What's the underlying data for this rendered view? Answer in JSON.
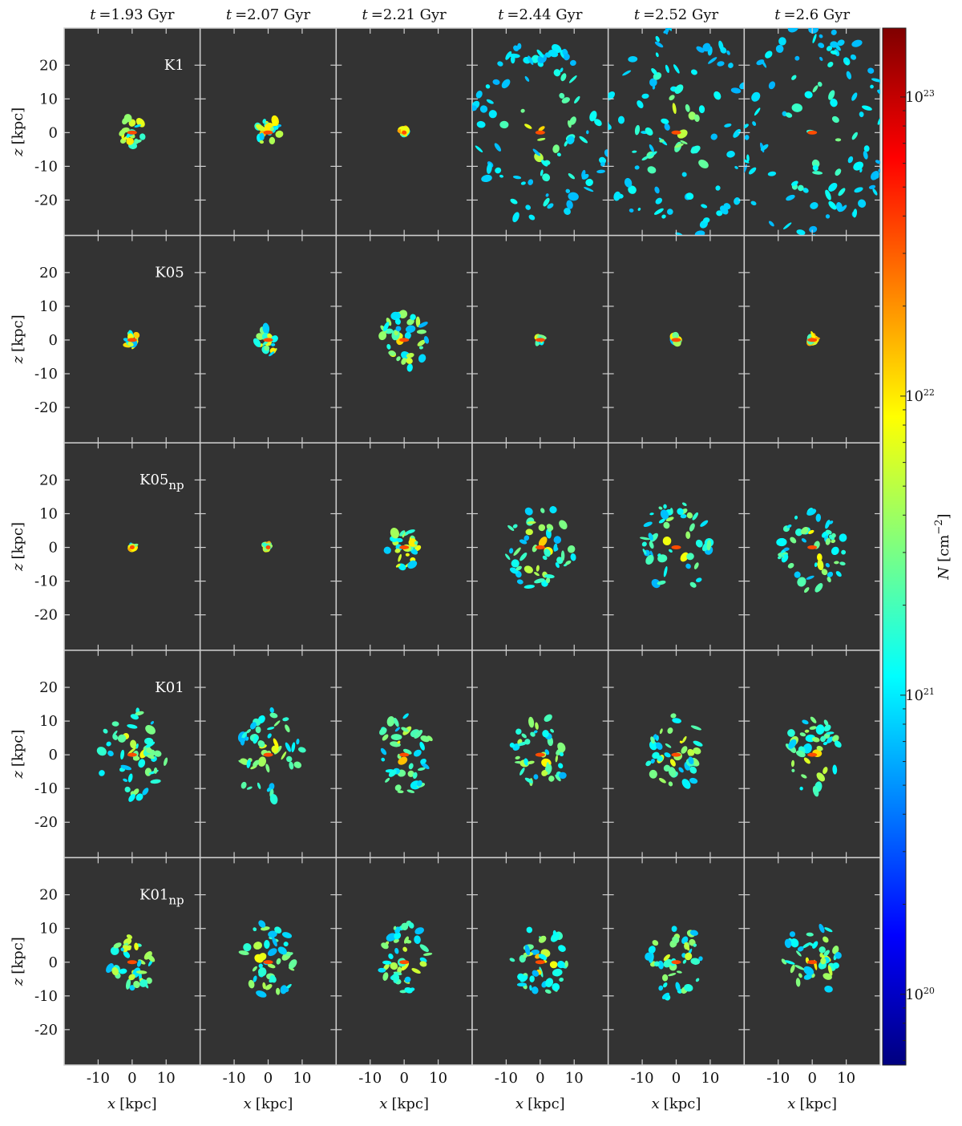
{
  "figure": {
    "columns": [
      {
        "symbol": "t",
        "text": "=1.93 Gyr"
      },
      {
        "symbol": "t",
        "text": "=2.07 Gyr"
      },
      {
        "symbol": "t",
        "text": "=2.21 Gyr"
      },
      {
        "symbol": "t",
        "text": "=2.44 Gyr"
      },
      {
        "symbol": "t",
        "text": "=2.52 Gyr"
      },
      {
        "symbol": "t",
        "text": "=2.6 Gyr"
      }
    ],
    "rows": [
      {
        "name": "K1"
      },
      {
        "name": "K05"
      },
      {
        "name": "K05",
        "sub": "np"
      },
      {
        "name": "K01"
      },
      {
        "name": "K01",
        "sub": "np"
      }
    ],
    "x_axis": {
      "symbol": "x",
      "unit": "[kpc]",
      "lim": [
        -20,
        20
      ],
      "ticks": [
        -10,
        0,
        10
      ]
    },
    "y_axis": {
      "symbol": "z",
      "unit": "[kpc]",
      "lim": [
        -30.5,
        31
      ],
      "ticks": [
        -20,
        -10,
        0,
        10,
        20
      ]
    },
    "colorbar": {
      "symbol": "N",
      "unit_open": "[cm",
      "unit_exp": "−2",
      "unit_close": "]",
      "log": true,
      "lim": [
        5.8e+19,
        1.7e+23
      ],
      "ticks": [
        {
          "value": 1e+20,
          "label": "10",
          "exp": "20"
        },
        {
          "value": 1e+21,
          "label": "10",
          "exp": "21"
        },
        {
          "value": 1e+22,
          "label": "10",
          "exp": "22"
        },
        {
          "value": 1e+23,
          "label": "10",
          "exp": "23"
        }
      ]
    },
    "panel_color": "#333333"
  }
}
